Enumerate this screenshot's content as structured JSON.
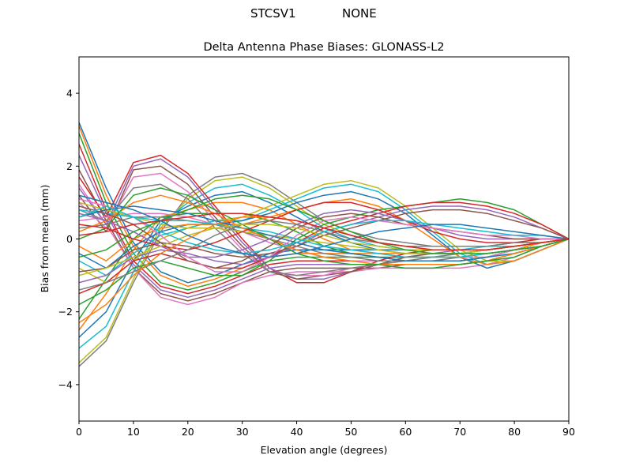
{
  "figure": {
    "suptitle_left": "STCSV1",
    "suptitle_right": "NONE"
  },
  "chart_data": {
    "type": "line",
    "title": "Delta Antenna Phase Biases: GLONASS-L2",
    "xlabel": "Elevation angle (degrees)",
    "ylabel": "Bias from mean (mm)",
    "xlim": [
      0,
      90
    ],
    "ylim": [
      -5,
      5
    ],
    "xticks": [
      0,
      10,
      20,
      30,
      40,
      50,
      60,
      70,
      80,
      90
    ],
    "yticks": [
      -4,
      -2,
      0,
      2,
      4
    ],
    "grid": false,
    "legend": "none",
    "colors": [
      "#1f77b4",
      "#ff7f0e",
      "#2ca02c",
      "#d62728",
      "#9467bd",
      "#8c564b",
      "#e377c2",
      "#7f7f7f",
      "#bcbd22",
      "#17becf"
    ],
    "x": [
      0,
      5,
      10,
      15,
      20,
      25,
      30,
      35,
      40,
      45,
      50,
      55,
      60,
      65,
      70,
      75,
      80,
      85,
      90
    ],
    "series": [
      {
        "values": [
          3.2,
          1.4,
          -0.1,
          -0.9,
          -1.2,
          -1.0,
          -0.7,
          -0.4,
          -0.3,
          -0.3,
          -0.3,
          -0.3,
          -0.3,
          -0.3,
          -0.3,
          -0.3,
          -0.2,
          -0.1,
          0.0
        ]
      },
      {
        "values": [
          3.1,
          1.2,
          -0.2,
          -1.0,
          -1.3,
          -1.1,
          -0.8,
          -0.5,
          -0.4,
          -0.4,
          -0.4,
          -0.4,
          -0.4,
          -0.4,
          -0.4,
          -0.3,
          -0.2,
          -0.1,
          0.0
        ]
      },
      {
        "values": [
          2.9,
          1.0,
          -0.4,
          -1.2,
          -1.4,
          -1.2,
          -0.9,
          -0.6,
          -0.5,
          -0.5,
          -0.5,
          -0.5,
          -0.5,
          -0.5,
          -0.5,
          -0.4,
          -0.3,
          -0.1,
          0.0
        ]
      },
      {
        "values": [
          2.6,
          0.8,
          -0.6,
          -1.3,
          -1.5,
          -1.3,
          -1.0,
          -0.7,
          -0.6,
          -0.6,
          -0.6,
          -0.6,
          -0.6,
          -0.6,
          -0.6,
          -0.5,
          -0.3,
          -0.2,
          0.0
        ]
      },
      {
        "values": [
          2.3,
          0.7,
          -0.7,
          -1.4,
          -1.6,
          -1.4,
          -1.1,
          -0.8,
          -0.7,
          -0.7,
          -0.7,
          -0.7,
          -0.7,
          -0.7,
          -0.7,
          -0.6,
          -0.4,
          -0.2,
          0.0
        ]
      },
      {
        "values": [
          1.9,
          0.5,
          -0.8,
          -1.5,
          -1.7,
          -1.5,
          -1.2,
          -0.9,
          -0.8,
          -0.8,
          -0.8,
          -0.8,
          -0.7,
          -0.7,
          -0.7,
          -0.6,
          -0.4,
          -0.2,
          0.0
        ]
      },
      {
        "values": [
          1.5,
          0.4,
          -0.8,
          -1.6,
          -1.8,
          -1.6,
          -1.2,
          -1.0,
          -0.9,
          -0.9,
          -0.9,
          -0.8,
          -0.8,
          -0.8,
          -0.8,
          -0.7,
          -0.5,
          -0.2,
          0.0
        ]
      },
      {
        "values": [
          -3.5,
          -2.8,
          -1.2,
          0.2,
          1.2,
          1.7,
          1.8,
          1.5,
          1.0,
          0.5,
          0.2,
          0.0,
          -0.1,
          -0.2,
          -0.2,
          -0.2,
          -0.1,
          -0.1,
          0.0
        ]
      },
      {
        "values": [
          -3.4,
          -2.7,
          -1.1,
          0.3,
          1.1,
          1.6,
          1.7,
          1.4,
          0.9,
          0.4,
          0.1,
          -0.1,
          -0.2,
          -0.2,
          -0.2,
          -0.2,
          -0.1,
          -0.1,
          0.0
        ]
      },
      {
        "values": [
          -3.0,
          -2.4,
          -0.9,
          0.4,
          1.0,
          1.4,
          1.5,
          1.2,
          0.8,
          0.3,
          0.0,
          -0.2,
          -0.3,
          -0.3,
          -0.3,
          -0.2,
          -0.2,
          -0.1,
          0.0
        ]
      },
      {
        "values": [
          -2.7,
          -2.0,
          -0.6,
          0.5,
          0.9,
          1.2,
          1.3,
          1.0,
          0.6,
          0.2,
          -0.1,
          -0.3,
          -0.4,
          -0.4,
          -0.4,
          -0.3,
          -0.2,
          -0.1,
          0.0
        ]
      },
      {
        "values": [
          -2.5,
          -1.5,
          -0.3,
          0.6,
          0.8,
          1.0,
          1.0,
          0.8,
          0.4,
          0.0,
          -0.3,
          -0.4,
          -0.5,
          -0.5,
          -0.5,
          -0.4,
          -0.3,
          -0.1,
          0.0
        ]
      },
      {
        "values": [
          -2.2,
          -1.1,
          0.0,
          0.6,
          0.7,
          0.7,
          0.7,
          0.5,
          0.2,
          -0.2,
          -0.4,
          -0.5,
          -0.6,
          -0.6,
          -0.6,
          -0.5,
          -0.3,
          -0.2,
          0.0
        ]
      },
      {
        "values": [
          1.7,
          0.6,
          2.1,
          2.3,
          1.8,
          0.9,
          0.0,
          -0.8,
          -1.2,
          -1.2,
          -0.9,
          -0.6,
          -0.4,
          -0.3,
          -0.3,
          -0.3,
          -0.2,
          -0.1,
          0.0
        ]
      },
      {
        "values": [
          1.4,
          0.4,
          2.0,
          2.2,
          1.7,
          0.8,
          -0.1,
          -0.8,
          -1.1,
          -1.1,
          -0.9,
          -0.7,
          -0.5,
          -0.4,
          -0.3,
          -0.3,
          -0.2,
          -0.1,
          0.0
        ]
      },
      {
        "values": [
          1.2,
          0.2,
          1.9,
          2.0,
          1.5,
          0.6,
          -0.2,
          -0.9,
          -1.1,
          -1.0,
          -0.9,
          -0.7,
          -0.5,
          -0.4,
          -0.4,
          -0.3,
          -0.2,
          -0.1,
          0.0
        ]
      },
      {
        "values": [
          1.0,
          0.3,
          1.7,
          1.8,
          1.3,
          0.5,
          -0.3,
          -0.9,
          -1.0,
          -1.0,
          -0.8,
          -0.7,
          -0.6,
          -0.5,
          -0.4,
          -0.3,
          -0.2,
          -0.1,
          0.0
        ]
      },
      {
        "values": [
          0.8,
          0.5,
          1.4,
          1.5,
          1.1,
          0.3,
          -0.4,
          -0.9,
          -1.0,
          -0.9,
          -0.8,
          -0.7,
          -0.6,
          -0.5,
          -0.4,
          -0.3,
          -0.2,
          -0.1,
          0.0
        ]
      },
      {
        "values": [
          -0.8,
          -1.2,
          -0.6,
          0.0,
          0.3,
          0.5,
          0.6,
          0.9,
          1.2,
          1.5,
          1.6,
          1.4,
          0.9,
          0.3,
          -0.3,
          -0.6,
          -0.6,
          -0.3,
          0.0
        ]
      },
      {
        "values": [
          -0.6,
          -1.0,
          -0.4,
          0.1,
          0.3,
          0.5,
          0.5,
          0.8,
          1.1,
          1.4,
          1.5,
          1.3,
          0.8,
          0.2,
          -0.4,
          -0.7,
          -0.6,
          -0.3,
          0.0
        ]
      },
      {
        "values": [
          -0.4,
          -0.8,
          -0.2,
          0.2,
          0.4,
          0.4,
          0.5,
          0.7,
          1.0,
          1.2,
          1.3,
          1.1,
          0.7,
          0.1,
          -0.5,
          -0.8,
          -0.6,
          -0.3,
          0.0
        ]
      },
      {
        "values": [
          -0.2,
          -0.6,
          0.0,
          0.3,
          0.4,
          0.4,
          0.4,
          0.6,
          0.8,
          1.0,
          1.1,
          0.9,
          0.5,
          0.0,
          -0.5,
          -0.7,
          -0.6,
          -0.3,
          0.0
        ]
      },
      {
        "values": [
          -1.8,
          -1.4,
          -0.8,
          -0.6,
          -0.8,
          -1.0,
          -1.0,
          -0.6,
          0.0,
          0.4,
          0.6,
          0.8,
          0.9,
          1.0,
          1.1,
          1.0,
          0.8,
          0.4,
          0.0
        ]
      },
      {
        "values": [
          -1.5,
          -1.2,
          -0.6,
          -0.4,
          -0.6,
          -0.8,
          -0.8,
          -0.5,
          -0.1,
          0.3,
          0.5,
          0.7,
          0.9,
          1.0,
          1.0,
          0.9,
          0.7,
          0.4,
          0.0
        ]
      },
      {
        "values": [
          -1.2,
          -1.0,
          -0.5,
          -0.3,
          -0.4,
          -0.6,
          -0.7,
          -0.5,
          -0.2,
          0.2,
          0.4,
          0.6,
          0.8,
          0.9,
          0.9,
          0.8,
          0.6,
          0.3,
          0.0
        ]
      },
      {
        "values": [
          -0.9,
          -0.8,
          -0.3,
          -0.1,
          -0.2,
          -0.4,
          -0.5,
          -0.4,
          -0.2,
          0.1,
          0.3,
          0.5,
          0.7,
          0.8,
          0.8,
          0.7,
          0.5,
          0.3,
          0.0
        ]
      },
      {
        "values": [
          0.5,
          0.6,
          0.7,
          0.7,
          0.6,
          0.4,
          0.2,
          -0.1,
          -0.3,
          -0.5,
          -0.6,
          -0.6,
          -0.6,
          -0.6,
          -0.5,
          -0.5,
          -0.3,
          -0.2,
          0.0
        ]
      },
      {
        "values": [
          0.3,
          0.4,
          0.6,
          0.6,
          0.5,
          0.4,
          0.2,
          0.0,
          -0.2,
          -0.4,
          -0.5,
          -0.6,
          -0.6,
          -0.6,
          -0.5,
          -0.4,
          -0.3,
          -0.2,
          0.0
        ]
      },
      {
        "values": [
          1.0,
          0.8,
          0.6,
          0.4,
          0.3,
          0.3,
          0.2,
          0.1,
          0.0,
          -0.1,
          -0.2,
          -0.3,
          -0.4,
          -0.4,
          -0.4,
          -0.3,
          -0.2,
          -0.1,
          0.0
        ]
      },
      {
        "values": [
          0.8,
          0.7,
          0.6,
          0.5,
          0.5,
          0.4,
          0.3,
          0.2,
          0.0,
          -0.2,
          -0.3,
          -0.4,
          -0.5,
          -0.5,
          -0.5,
          -0.4,
          -0.3,
          -0.2,
          0.0
        ]
      },
      {
        "values": [
          0.6,
          0.8,
          0.9,
          0.8,
          0.7,
          0.5,
          0.3,
          0.1,
          -0.1,
          -0.3,
          -0.4,
          -0.5,
          -0.6,
          -0.6,
          -0.6,
          -0.5,
          -0.4,
          -0.2,
          0.0
        ]
      },
      {
        "values": [
          0.2,
          0.5,
          1.0,
          1.2,
          1.0,
          0.7,
          0.3,
          0.0,
          -0.3,
          -0.5,
          -0.6,
          -0.7,
          -0.7,
          -0.7,
          -0.7,
          -0.6,
          -0.4,
          -0.2,
          0.0
        ]
      },
      {
        "values": [
          0.0,
          0.3,
          1.2,
          1.4,
          1.2,
          0.8,
          0.4,
          0.0,
          -0.4,
          -0.6,
          -0.7,
          -0.7,
          -0.8,
          -0.8,
          -0.7,
          -0.6,
          -0.5,
          -0.2,
          0.0
        ]
      },
      {
        "values": [
          0.4,
          0.3,
          0.0,
          -0.2,
          -0.3,
          -0.1,
          0.2,
          0.5,
          0.8,
          1.0,
          1.0,
          0.8,
          0.5,
          0.2,
          0.0,
          -0.1,
          -0.1,
          0.0,
          0.0
        ]
      },
      {
        "values": [
          0.7,
          0.5,
          0.2,
          -0.2,
          -0.5,
          -0.5,
          -0.3,
          0.0,
          0.4,
          0.7,
          0.8,
          0.7,
          0.5,
          0.3,
          0.1,
          0.0,
          0.0,
          0.0,
          0.0
        ]
      },
      {
        "values": [
          0.9,
          0.7,
          0.4,
          -0.1,
          -0.6,
          -0.8,
          -0.6,
          -0.2,
          0.3,
          0.6,
          0.7,
          0.6,
          0.4,
          0.3,
          0.2,
          0.1,
          0.0,
          0.0,
          0.0
        ]
      },
      {
        "values": [
          1.1,
          0.9,
          0.6,
          0.1,
          -0.5,
          -0.9,
          -0.9,
          -0.5,
          0.1,
          0.5,
          0.6,
          0.5,
          0.4,
          0.3,
          0.2,
          0.1,
          0.1,
          0.0,
          0.0
        ]
      },
      {
        "values": [
          -1.4,
          -1.2,
          -0.9,
          -0.6,
          -0.3,
          0.1,
          0.4,
          0.5,
          0.4,
          0.2,
          0.0,
          -0.1,
          -0.2,
          -0.2,
          -0.2,
          -0.2,
          -0.1,
          -0.1,
          0.0
        ]
      },
      {
        "values": [
          -1.0,
          -0.8,
          -0.5,
          -0.2,
          0.1,
          0.3,
          0.4,
          0.4,
          0.3,
          0.1,
          -0.1,
          -0.2,
          -0.3,
          -0.3,
          -0.3,
          -0.3,
          -0.2,
          -0.1,
          0.0
        ]
      },
      {
        "values": [
          0.6,
          0.9,
          0.6,
          0.2,
          -0.1,
          -0.3,
          -0.4,
          -0.3,
          -0.1,
          0.2,
          0.4,
          0.5,
          0.5,
          0.4,
          0.3,
          0.2,
          0.1,
          0.1,
          0.0
        ]
      },
      {
        "values": [
          1.2,
          1.0,
          0.8,
          0.5,
          0.1,
          -0.2,
          -0.4,
          -0.5,
          -0.4,
          -0.2,
          0.0,
          0.2,
          0.3,
          0.4,
          0.4,
          0.3,
          0.2,
          0.1,
          0.0
        ]
      },
      {
        "values": [
          -2.3,
          -1.8,
          -1.0,
          -0.4,
          0.0,
          0.4,
          0.6,
          0.6,
          0.5,
          0.3,
          0.1,
          -0.1,
          -0.2,
          -0.3,
          -0.3,
          -0.3,
          -0.2,
          -0.1,
          0.0
        ]
      },
      {
        "values": [
          -0.5,
          -0.3,
          0.2,
          0.5,
          0.8,
          1.1,
          1.2,
          1.1,
          0.8,
          0.5,
          0.2,
          -0.1,
          -0.3,
          -0.4,
          -0.4,
          -0.4,
          -0.3,
          -0.2,
          0.0
        ]
      },
      {
        "values": [
          0.1,
          0.2,
          0.4,
          0.5,
          0.6,
          0.7,
          0.7,
          0.6,
          0.5,
          0.3,
          0.1,
          -0.1,
          -0.2,
          -0.3,
          -0.3,
          -0.3,
          -0.2,
          -0.1,
          0.0
        ]
      }
    ]
  }
}
